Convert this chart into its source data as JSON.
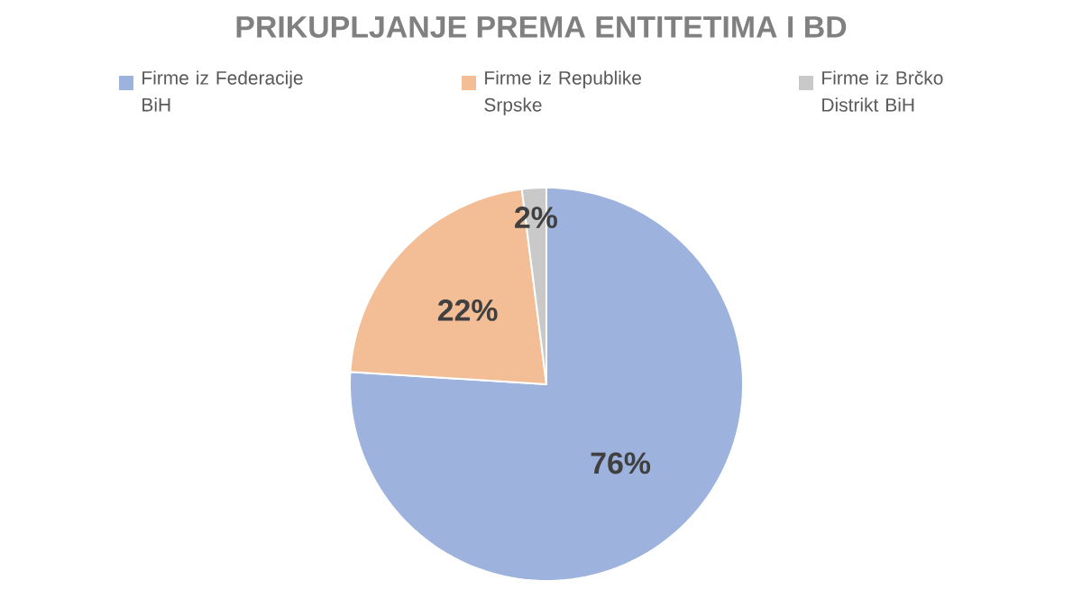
{
  "chart_data": {
    "type": "pie",
    "title": "PRIKUPLJANJE PREMA ENTITETIMA I BD",
    "categories": [
      "Firme iz Federacije BiH",
      "Firme iz Republike Srpske",
      "Firme iz Brčko Distrikt BiH"
    ],
    "values": [
      76,
      22,
      2
    ],
    "colors": [
      "#9db3dd",
      "#f3bd96",
      "#c9c9c9"
    ],
    "value_labels": [
      "76%",
      "22%",
      "2%"
    ],
    "legend": "top"
  }
}
